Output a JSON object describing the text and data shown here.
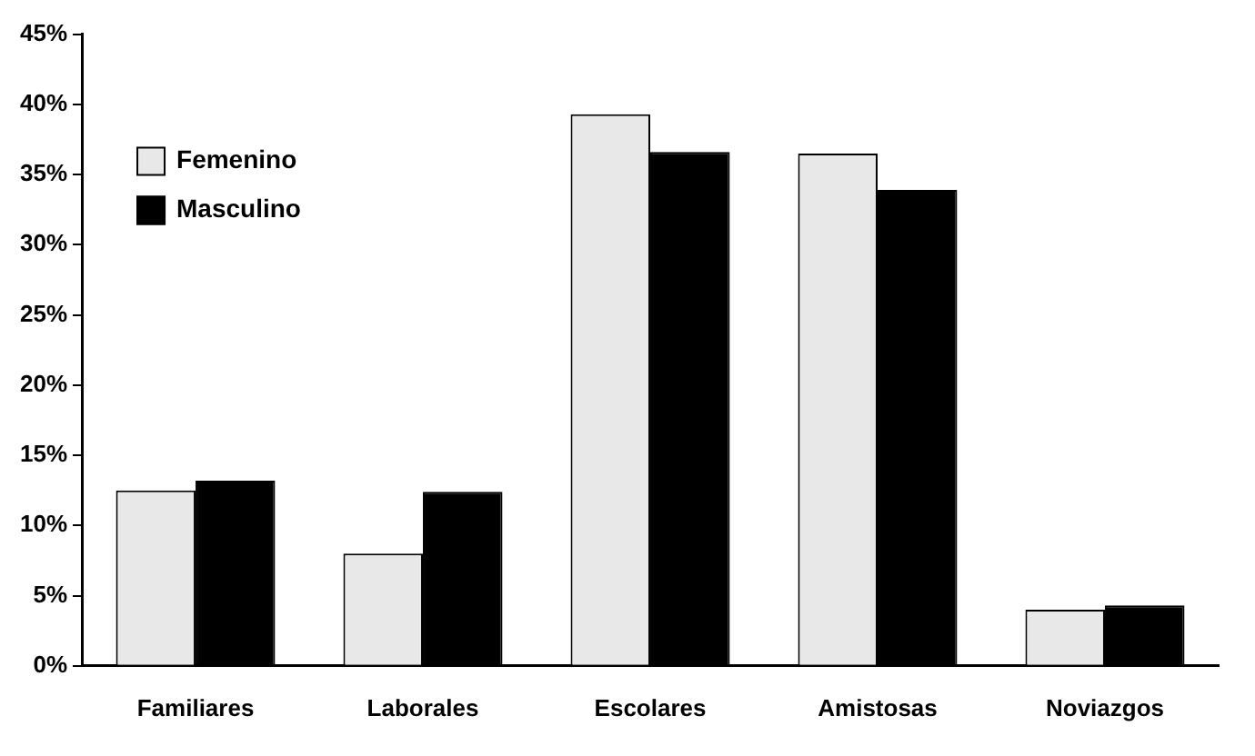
{
  "chart_data": {
    "type": "bar",
    "categories": [
      "Familiares",
      "Laborales",
      "Escolares",
      "Amistosas",
      "Noviazgos"
    ],
    "series": [
      {
        "name": "Femenino",
        "color": "#e8e8e8",
        "values": [
          12.5,
          8.0,
          39.3,
          36.5,
          4.0
        ]
      },
      {
        "name": "Masculino",
        "color": "#000000",
        "values": [
          13.2,
          12.4,
          36.6,
          33.9,
          4.3
        ]
      }
    ],
    "ylim": [
      0,
      45
    ],
    "yticks": [
      {
        "value": 0,
        "label": "0%"
      },
      {
        "value": 5,
        "label": "5%"
      },
      {
        "value": 10,
        "label": "10%"
      },
      {
        "value": 15,
        "label": "15%"
      },
      {
        "value": 20,
        "label": "20%"
      },
      {
        "value": 25,
        "label": "25%"
      },
      {
        "value": 30,
        "label": "30%"
      },
      {
        "value": 35,
        "label": "35%"
      },
      {
        "value": 40,
        "label": "40%"
      },
      {
        "value": 45,
        "label": "45%"
      }
    ],
    "grid": false,
    "legend": "top left"
  }
}
